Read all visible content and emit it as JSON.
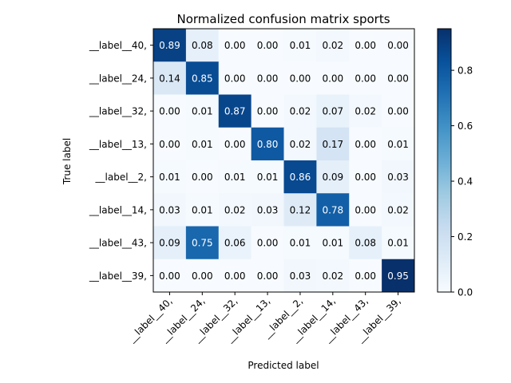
{
  "chart_data": {
    "type": "heatmap",
    "title": "Normalized confusion matrix sports",
    "xlabel": "Predicted label",
    "ylabel": "True label",
    "rows": [
      "__label__40,",
      "__label__24,",
      "__label__32,",
      "__label__13,",
      "__label__2,",
      "__label__14,",
      "__label__43,",
      "__label__39,"
    ],
    "columns": [
      "__label__40,",
      "__label__24,",
      "__label__32,",
      "__label__13,",
      "__label__2,",
      "__label__14,",
      "__label__43,",
      "__label__39,"
    ],
    "values": [
      [
        0.89,
        0.08,
        0.0,
        0.0,
        0.01,
        0.02,
        0.0,
        0.0
      ],
      [
        0.14,
        0.85,
        0.0,
        0.0,
        0.0,
        0.0,
        0.0,
        0.0
      ],
      [
        0.0,
        0.01,
        0.87,
        0.0,
        0.02,
        0.07,
        0.02,
        0.0
      ],
      [
        0.0,
        0.01,
        0.0,
        0.8,
        0.02,
        0.17,
        0.0,
        0.01
      ],
      [
        0.01,
        0.0,
        0.01,
        0.01,
        0.86,
        0.09,
        0.0,
        0.03
      ],
      [
        0.03,
        0.01,
        0.02,
        0.03,
        0.12,
        0.78,
        0.0,
        0.02
      ],
      [
        0.09,
        0.75,
        0.06,
        0.0,
        0.01,
        0.01,
        0.08,
        0.01
      ],
      [
        0.0,
        0.0,
        0.0,
        0.0,
        0.03,
        0.02,
        0.0,
        0.95
      ]
    ],
    "value_format": "0.00",
    "colormap": "Blues",
    "color_range": [
      0.0,
      0.95
    ],
    "colorbar_ticks": [
      "0.0",
      "0.2",
      "0.4",
      "0.6",
      "0.8"
    ],
    "colors": {
      "low": "#f7fbff",
      "high": "#08306b",
      "text_on_dark": "#ffffff",
      "text_on_light": "#000000"
    },
    "grid": false,
    "legend": "colorbar-right"
  }
}
